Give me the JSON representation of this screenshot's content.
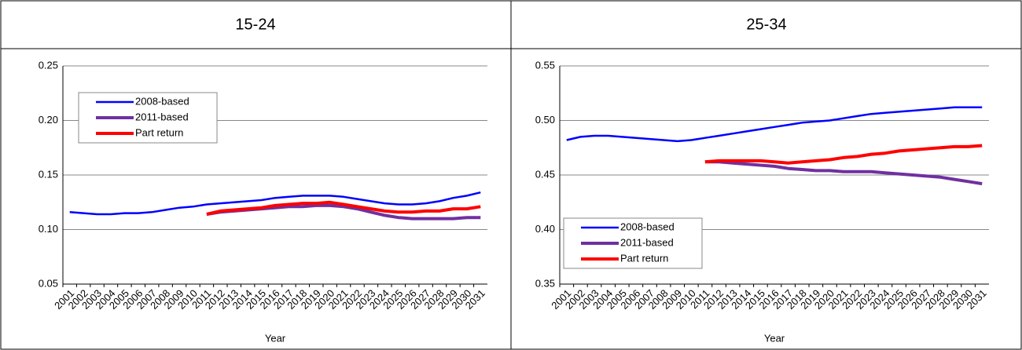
{
  "chart_data": [
    {
      "type": "line",
      "title": "15-24",
      "x_label": "Year",
      "categories": [
        "2001",
        "2002",
        "2003",
        "2004",
        "2005",
        "2006",
        "2007",
        "2008",
        "2009",
        "2010",
        "2011",
        "2012",
        "2013",
        "2014",
        "2015",
        "2016",
        "2017",
        "2018",
        "2019",
        "2020",
        "2021",
        "2022",
        "2023",
        "2024",
        "2025",
        "2026",
        "2027",
        "2028",
        "2029",
        "2030",
        "2031"
      ],
      "ylim": [
        0.05,
        0.25
      ],
      "yticks": [
        0.05,
        {
          "value": 0.1,
          "label": "0.10"
        },
        0.15,
        {
          "value": 0.2,
          "label": "0.20"
        },
        0.25
      ],
      "grid": true,
      "legend": "upper left",
      "series": [
        {
          "name": "2008-based",
          "color": "#0000ff",
          "values": [
            0.116,
            0.115,
            0.114,
            0.114,
            0.115,
            0.115,
            0.116,
            0.118,
            0.12,
            0.121,
            0.123,
            0.124,
            0.125,
            0.126,
            0.127,
            0.129,
            0.13,
            0.131,
            0.131,
            0.131,
            0.13,
            0.128,
            0.126,
            0.124,
            0.123,
            0.123,
            0.124,
            0.126,
            0.129,
            0.131,
            0.134
          ]
        },
        {
          "name": "2011-based",
          "color": "#7030a0",
          "values": [
            null,
            null,
            null,
            null,
            null,
            null,
            null,
            null,
            null,
            null,
            0.114,
            0.116,
            0.117,
            0.118,
            0.119,
            0.12,
            0.121,
            0.121,
            0.122,
            0.122,
            0.121,
            0.119,
            0.116,
            0.113,
            0.111,
            0.11,
            0.11,
            0.11,
            0.11,
            0.111,
            0.111
          ]
        },
        {
          "name": "Part return",
          "color": "#ff0000",
          "values": [
            null,
            null,
            null,
            null,
            null,
            null,
            null,
            null,
            null,
            null,
            0.114,
            0.117,
            0.118,
            0.119,
            0.12,
            0.122,
            0.123,
            0.124,
            0.124,
            0.125,
            0.123,
            0.121,
            0.119,
            0.117,
            0.116,
            0.116,
            0.117,
            0.117,
            0.119,
            0.119,
            0.121
          ]
        }
      ]
    },
    {
      "type": "line",
      "title": "25-34",
      "x_label": "Year",
      "categories": [
        "2001",
        "2002",
        "2003",
        "2004",
        "2005",
        "2006",
        "2007",
        "2008",
        "2009",
        "2010",
        "2011",
        "2012",
        "2013",
        "2014",
        "2015",
        "2016",
        "2017",
        "2018",
        "2019",
        "2020",
        "2021",
        "2022",
        "2023",
        "2024",
        "2025",
        "2026",
        "2027",
        "2028",
        "2029",
        "2030",
        "2031"
      ],
      "ylim": [
        0.35,
        0.55
      ],
      "yticks": [
        0.35,
        {
          "value": 0.4,
          "label": "0.40"
        },
        0.45,
        {
          "value": 0.5,
          "label": "0.50"
        },
        0.55
      ],
      "grid": true,
      "legend": "lower left",
      "series": [
        {
          "name": "2008-based",
          "color": "#0000ff",
          "values": [
            0.482,
            0.485,
            0.486,
            0.486,
            0.485,
            0.484,
            0.483,
            0.482,
            0.481,
            0.482,
            0.484,
            0.486,
            0.488,
            0.49,
            0.492,
            0.494,
            0.496,
            0.498,
            0.499,
            0.5,
            0.502,
            0.504,
            0.506,
            0.507,
            0.508,
            0.509,
            0.51,
            0.511,
            0.512,
            0.512,
            0.512
          ]
        },
        {
          "name": "2011-based",
          "color": "#7030a0",
          "values": [
            null,
            null,
            null,
            null,
            null,
            null,
            null,
            null,
            null,
            null,
            0.462,
            0.462,
            0.461,
            0.46,
            0.459,
            0.458,
            0.456,
            0.455,
            0.454,
            0.454,
            0.453,
            0.453,
            0.453,
            0.452,
            0.451,
            0.45,
            0.449,
            0.448,
            0.446,
            0.444,
            0.442
          ]
        },
        {
          "name": "Part return",
          "color": "#ff0000",
          "values": [
            null,
            null,
            null,
            null,
            null,
            null,
            null,
            null,
            null,
            null,
            0.462,
            0.463,
            0.463,
            0.463,
            0.463,
            0.462,
            0.461,
            0.462,
            0.463,
            0.464,
            0.466,
            0.467,
            0.469,
            0.47,
            0.472,
            0.473,
            0.474,
            0.475,
            0.476,
            0.476,
            0.477
          ]
        }
      ]
    }
  ]
}
